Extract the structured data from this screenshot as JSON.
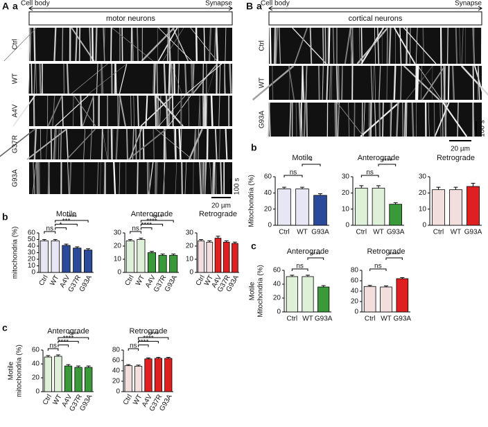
{
  "panel_labels": [
    "A",
    "a",
    "b",
    "c",
    "B",
    "a",
    "b",
    "c"
  ],
  "kymographs": [
    {
      "start": "Cell body",
      "end": "Synapse",
      "title": "motor neurons",
      "rows": [
        "Ctrl",
        "WT",
        "A4V",
        "G37R",
        "G93A"
      ],
      "time_scale": "100 s",
      "length_scale": "20 µm"
    },
    {
      "start": "Cell body",
      "end": "Synapse",
      "title": "cortical neurons",
      "rows": [
        "Ctrl",
        "WT",
        "G93A"
      ],
      "time_scale": "100 s",
      "length_scale": "20 µm"
    }
  ],
  "chart_data": [
    {
      "type": "bar",
      "title": "Motile",
      "ylabel": [
        "mitochondria (%)"
      ],
      "categories": [
        "Ctrl",
        "WT",
        "A4V",
        "G37R",
        "G93A"
      ],
      "values": [
        48,
        48,
        41,
        37,
        34
      ],
      "errors": [
        2,
        2,
        2,
        2,
        2
      ],
      "colors": [
        "#e6e6f5",
        "#e6e6f5",
        "#2b4a9a",
        "#2b4a9a",
        "#2b4a9a"
      ],
      "ylim": [
        0,
        60
      ],
      "yticks": [
        0,
        10,
        20,
        30,
        40,
        50,
        60
      ],
      "annotations": [
        {
          "text": "ns",
          "between": [
            "Ctrl",
            "WT"
          ]
        },
        {
          "text": "*",
          "between": [
            "WT",
            "A4V"
          ]
        },
        {
          "text": "***",
          "between": [
            "WT",
            "G37R"
          ]
        },
        {
          "text": "****",
          "between": [
            "WT",
            "G93A"
          ]
        }
      ]
    },
    {
      "type": "bar",
      "title": "Anterograde",
      "ylabel": [],
      "categories": [
        "Ctrl",
        "WT",
        "A4V",
        "G37R",
        "G93A"
      ],
      "values": [
        24,
        25,
        15,
        13,
        13
      ],
      "errors": [
        1,
        1,
        1,
        1,
        1
      ],
      "colors": [
        "#dff0d8",
        "#dff0d8",
        "#3a9a3a",
        "#3a9a3a",
        "#3a9a3a"
      ],
      "ylim": [
        0,
        30
      ],
      "yticks": [
        0,
        10,
        20,
        30
      ],
      "annotations": [
        {
          "text": "ns",
          "between": [
            "Ctrl",
            "WT"
          ]
        },
        {
          "text": "****",
          "between": [
            "WT",
            "A4V"
          ]
        },
        {
          "text": "****",
          "between": [
            "WT",
            "G37R"
          ]
        },
        {
          "text": "****",
          "between": [
            "WT",
            "G93A"
          ]
        }
      ]
    },
    {
      "type": "bar",
      "title": "Retrograde",
      "ylabel": [],
      "categories": [
        "Ctrl",
        "WT",
        "A4V",
        "G37R",
        "G93A"
      ],
      "values": [
        24,
        23,
        26,
        23,
        22
      ],
      "errors": [
        1,
        1,
        1.5,
        1,
        1
      ],
      "colors": [
        "#f3dede",
        "#f3dede",
        "#e02020",
        "#e02020",
        "#e02020"
      ],
      "ylim": [
        0,
        30
      ],
      "yticks": [
        0,
        10,
        20,
        30
      ],
      "annotations": []
    },
    {
      "type": "bar",
      "title": "Anterograde",
      "ylabel": [
        "Motile",
        "mitochondria (%)"
      ],
      "categories": [
        "Ctrl",
        "WT",
        "A4V",
        "G37R",
        "G93A"
      ],
      "values": [
        50,
        51,
        37,
        35,
        35
      ],
      "errors": [
        2,
        2,
        2,
        2,
        2
      ],
      "colors": [
        "#dff0d8",
        "#dff0d8",
        "#3a9a3a",
        "#3a9a3a",
        "#3a9a3a"
      ],
      "ylim": [
        0,
        60
      ],
      "yticks": [
        0,
        20,
        40,
        60
      ],
      "annotations": [
        {
          "text": "ns",
          "between": [
            "Ctrl",
            "WT"
          ]
        },
        {
          "text": "****",
          "between": [
            "WT",
            "A4V"
          ]
        },
        {
          "text": "****",
          "between": [
            "WT",
            "G37R"
          ]
        },
        {
          "text": "****",
          "between": [
            "WT",
            "G93A"
          ]
        }
      ]
    },
    {
      "type": "bar",
      "title": "Retrograde",
      "ylabel": [],
      "categories": [
        "Ctrl",
        "WT",
        "A4V",
        "G37R",
        "G93A"
      ],
      "values": [
        50,
        49,
        63,
        64,
        64
      ],
      "errors": [
        2,
        2,
        2,
        2,
        2
      ],
      "colors": [
        "#f3dede",
        "#f3dede",
        "#e02020",
        "#e02020",
        "#e02020"
      ],
      "ylim": [
        0,
        80
      ],
      "yticks": [
        0,
        20,
        40,
        60,
        80
      ],
      "annotations": [
        {
          "text": "ns",
          "between": [
            "Ctrl",
            "WT"
          ]
        },
        {
          "text": "****",
          "between": [
            "WT",
            "A4V"
          ]
        },
        {
          "text": "****",
          "between": [
            "WT",
            "G37R"
          ]
        },
        {
          "text": "****",
          "between": [
            "WT",
            "G93A"
          ]
        }
      ]
    },
    {
      "type": "bar",
      "title": "Motile",
      "ylabel": [
        "Mitochondria (%)"
      ],
      "categories": [
        "Ctrl",
        "WT",
        "G93A"
      ],
      "values": [
        45,
        45,
        37
      ],
      "errors": [
        2,
        2,
        2
      ],
      "colors": [
        "#e6e6f5",
        "#e6e6f5",
        "#2b4a9a"
      ],
      "ylim": [
        0,
        60
      ],
      "yticks": [
        0,
        20,
        40,
        60
      ],
      "annotations": [
        {
          "text": "ns",
          "between": [
            "Ctrl",
            "WT"
          ]
        },
        {
          "text": "*",
          "between": [
            "WT",
            "G93A"
          ]
        }
      ]
    },
    {
      "type": "bar",
      "title": "Anterograde",
      "ylabel": [],
      "categories": [
        "Ctrl",
        "WT",
        "G93A"
      ],
      "values": [
        23,
        23,
        13
      ],
      "errors": [
        1.5,
        1.5,
        1
      ],
      "colors": [
        "#dff0d8",
        "#dff0d8",
        "#3a9a3a"
      ],
      "ylim": [
        0,
        30
      ],
      "yticks": [
        0,
        10,
        20,
        30
      ],
      "annotations": [
        {
          "text": "ns",
          "between": [
            "Ctrl",
            "WT"
          ]
        },
        {
          "text": "****",
          "between": [
            "WT",
            "G93A"
          ]
        }
      ]
    },
    {
      "type": "bar",
      "title": "Retrograde",
      "ylabel": [],
      "categories": [
        "Ctrl",
        "WT",
        "G93A"
      ],
      "values": [
        22,
        22,
        24
      ],
      "errors": [
        1.5,
        1.5,
        2
      ],
      "colors": [
        "#f3dede",
        "#f3dede",
        "#e02020"
      ],
      "ylim": [
        0,
        30
      ],
      "yticks": [
        0,
        10,
        20,
        30
      ],
      "annotations": []
    },
    {
      "type": "bar",
      "title": "Anterograde",
      "ylabel": [
        "Motile",
        "Mitochondria (%)"
      ],
      "categories": [
        "Ctrl",
        "WT",
        "G93A"
      ],
      "values": [
        51,
        51,
        36
      ],
      "errors": [
        2,
        2,
        2
      ],
      "colors": [
        "#dff0d8",
        "#dff0d8",
        "#3a9a3a"
      ],
      "ylim": [
        0,
        60
      ],
      "yticks": [
        0,
        20,
        40,
        60
      ],
      "annotations": [
        {
          "text": "ns",
          "between": [
            "Ctrl",
            "WT"
          ]
        },
        {
          "text": "****",
          "between": [
            "WT",
            "G93A"
          ]
        }
      ]
    },
    {
      "type": "bar",
      "title": "Retrograde",
      "ylabel": [],
      "categories": [
        "Ctrl",
        "WT",
        "G93A"
      ],
      "values": [
        49,
        48,
        64
      ],
      "errors": [
        2,
        2,
        2
      ],
      "colors": [
        "#f3dede",
        "#f3dede",
        "#e02020"
      ],
      "ylim": [
        0,
        80
      ],
      "yticks": [
        0,
        20,
        40,
        60,
        80
      ],
      "annotations": [
        {
          "text": "ns",
          "between": [
            "Ctrl",
            "WT"
          ]
        },
        {
          "text": "****",
          "between": [
            "WT",
            "G93A"
          ]
        }
      ]
    }
  ]
}
